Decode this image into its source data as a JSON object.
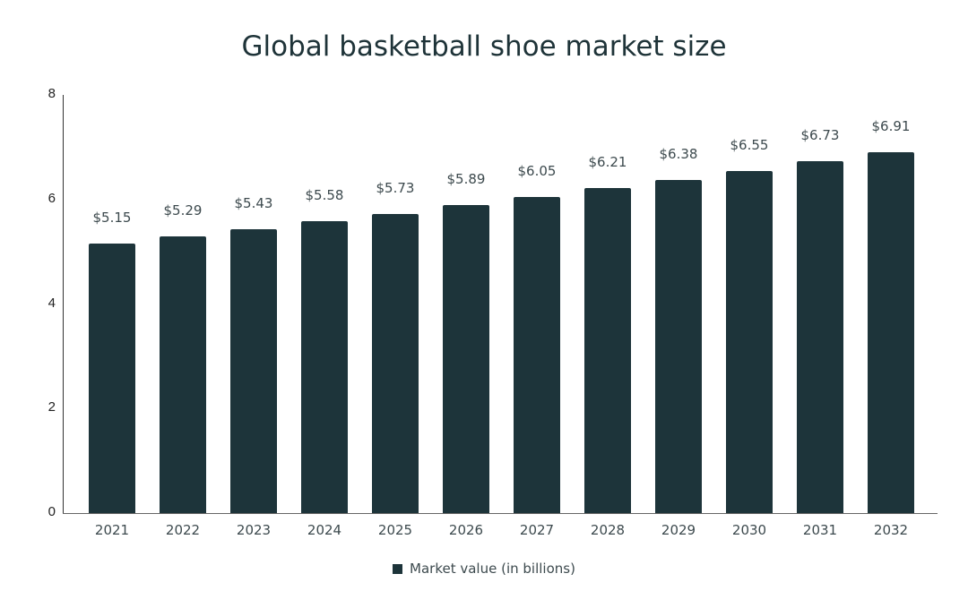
{
  "chart_data": {
    "type": "bar",
    "title": "Global basketball shoe market size",
    "xlabel": "",
    "ylabel": "",
    "ylim": [
      0,
      8
    ],
    "yticks": [
      0,
      2,
      4,
      6,
      8
    ],
    "grid": false,
    "legend_position": "bottom",
    "categories": [
      "2021",
      "2022",
      "2023",
      "2024",
      "2025",
      "2026",
      "2027",
      "2028",
      "2029",
      "2030",
      "2031",
      "2032"
    ],
    "series": [
      {
        "name": "Market value (in billions)",
        "color": "#1d343a",
        "values": [
          5.15,
          5.29,
          5.43,
          5.58,
          5.73,
          5.89,
          6.05,
          6.21,
          6.38,
          6.55,
          6.73,
          6.91
        ],
        "labels": [
          "$5.15",
          "$5.29",
          "$5.43",
          "$5.58",
          "$5.73",
          "$5.89",
          "$6.05",
          "$6.21",
          "$6.38",
          "$6.55",
          "$6.73",
          "$6.91"
        ]
      }
    ]
  }
}
